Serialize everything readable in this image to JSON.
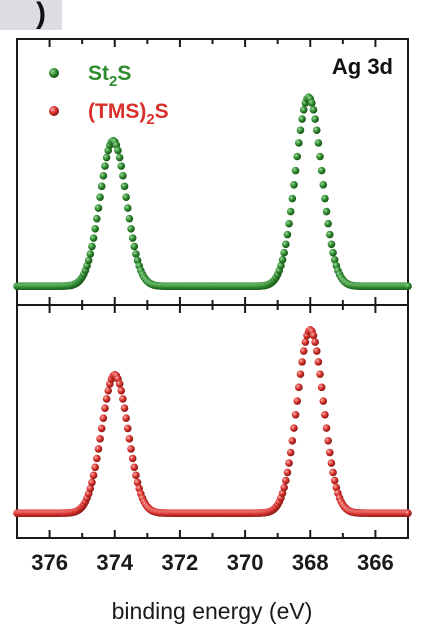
{
  "corner_label": ")",
  "chart_data": {
    "type": "scatter",
    "title": "",
    "annotation": "Ag 3d",
    "xlabel": "binding energy (eV)",
    "ylabel": "",
    "x_reversed": true,
    "xlim": [
      377,
      365
    ],
    "xticks": [
      376,
      374,
      372,
      370,
      368,
      366
    ],
    "xtick_labels": [
      "376",
      "374",
      "372",
      "370",
      "368",
      "366"
    ],
    "panels": 2,
    "series": [
      {
        "name": "St2S",
        "name_base": "St",
        "name_sub": "2",
        "name_end": "S",
        "color": "#2e8b2e",
        "panel": "top",
        "baseline": 0.02,
        "peaks": [
          {
            "center": 374.05,
            "height": 0.77,
            "fwhm": 0.95
          },
          {
            "center": 368.05,
            "height": 1.0,
            "fwhm": 0.95
          }
        ]
      },
      {
        "name": "(TMS)2S",
        "name_base": "(TMS)",
        "name_sub": "2",
        "name_end": "S",
        "color": "#d9302b",
        "panel": "bottom",
        "baseline": 0.03,
        "peaks": [
          {
            "center": 374.0,
            "height": 0.71,
            "fwhm": 0.95
          },
          {
            "center": 368.0,
            "height": 0.94,
            "fwhm": 0.95
          }
        ]
      }
    ],
    "legend_position": "top-left",
    "grid": false
  }
}
